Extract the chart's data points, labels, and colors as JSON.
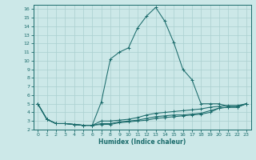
{
  "xlabel": "Humidex (Indice chaleur)",
  "background_color": "#cce8e8",
  "grid_color": "#aacfcf",
  "line_color": "#1a6b6b",
  "xlim": [
    -0.5,
    23.5
  ],
  "ylim": [
    2,
    16.5
  ],
  "xticks": [
    0,
    1,
    2,
    3,
    4,
    5,
    6,
    7,
    8,
    9,
    10,
    11,
    12,
    13,
    14,
    15,
    16,
    17,
    18,
    19,
    20,
    21,
    22,
    23
  ],
  "yticks": [
    2,
    3,
    4,
    5,
    6,
    7,
    8,
    9,
    10,
    11,
    12,
    13,
    14,
    15,
    16
  ],
  "series": [
    {
      "x": [
        0,
        1,
        2,
        3,
        4,
        5,
        6,
        7,
        8,
        9,
        10,
        11,
        12,
        13,
        14,
        15,
        16,
        17,
        18,
        19,
        20,
        21,
        22,
        23
      ],
      "y": [
        5.0,
        3.2,
        2.7,
        2.7,
        2.6,
        2.5,
        2.5,
        5.2,
        10.2,
        11.0,
        11.5,
        13.8,
        15.2,
        16.2,
        14.6,
        12.1,
        9.0,
        7.8,
        5.0,
        5.0,
        5.0,
        4.7,
        4.7,
        5.0
      ]
    },
    {
      "x": [
        0,
        1,
        2,
        3,
        4,
        5,
        6,
        7,
        8,
        9,
        10,
        11,
        12,
        13,
        14,
        15,
        16,
        17,
        18,
        19,
        20,
        21,
        22,
        23
      ],
      "y": [
        5.0,
        3.2,
        2.7,
        2.7,
        2.6,
        2.5,
        2.5,
        3.0,
        3.0,
        3.1,
        3.2,
        3.4,
        3.7,
        3.9,
        4.0,
        4.1,
        4.2,
        4.3,
        4.4,
        4.6,
        4.7,
        4.8,
        4.8,
        5.0
      ]
    },
    {
      "x": [
        0,
        1,
        2,
        3,
        4,
        5,
        6,
        7,
        8,
        9,
        10,
        11,
        12,
        13,
        14,
        15,
        16,
        17,
        18,
        19,
        20,
        21,
        22,
        23
      ],
      "y": [
        5.0,
        3.2,
        2.7,
        2.7,
        2.6,
        2.5,
        2.5,
        2.7,
        2.7,
        2.9,
        3.0,
        3.1,
        3.3,
        3.5,
        3.6,
        3.7,
        3.7,
        3.8,
        3.9,
        4.2,
        4.5,
        4.6,
        4.6,
        5.0
      ]
    },
    {
      "x": [
        0,
        1,
        2,
        3,
        4,
        5,
        6,
        7,
        8,
        9,
        10,
        11,
        12,
        13,
        14,
        15,
        16,
        17,
        18,
        19,
        20,
        21,
        22,
        23
      ],
      "y": [
        5.0,
        3.2,
        2.7,
        2.7,
        2.6,
        2.5,
        2.5,
        2.6,
        2.6,
        2.8,
        2.9,
        3.0,
        3.1,
        3.3,
        3.4,
        3.5,
        3.6,
        3.7,
        3.8,
        4.0,
        4.5,
        4.6,
        4.6,
        5.0
      ]
    }
  ]
}
